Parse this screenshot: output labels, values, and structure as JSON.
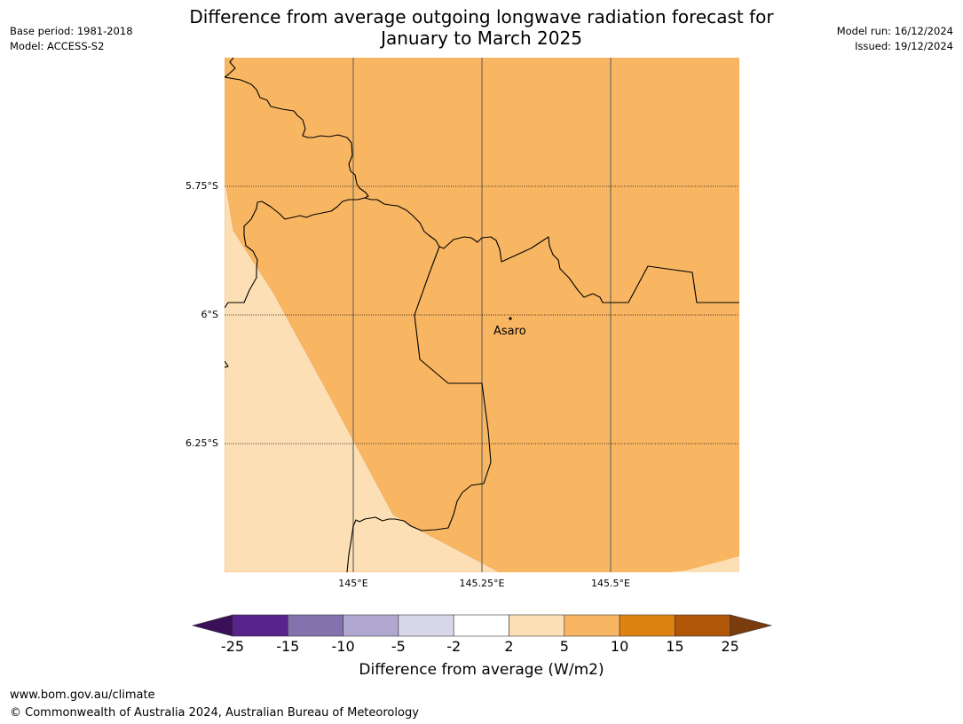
{
  "header": {
    "title_line1": "Difference from average outgoing longwave radiation forecast for",
    "title_line2": "January to March 2025",
    "base_period": "Base period: 1981-2018",
    "model": "Model: ACCESS-S2",
    "model_run": "Model run: 16/12/2024",
    "issued": "Issued: 19/12/2024"
  },
  "map": {
    "latitude_labels": [
      "5.75°S",
      "6°S",
      "6.25°S"
    ],
    "longitude_labels": [
      "145°E",
      "145.25°E",
      "145.5°E"
    ],
    "place": {
      "name": "Asaro"
    },
    "fill_colors": {
      "class_5_10": "#f9b662",
      "class_2_5": "#fcdfb5"
    }
  },
  "colorbar": {
    "title": "Difference from average (W/m2)",
    "tick_labels": [
      "-25",
      "-15",
      "-10",
      "-5",
      "-2",
      "2",
      "5",
      "10",
      "15",
      "25"
    ],
    "colors": [
      "#3b0f5a",
      "#58238a",
      "#8472af",
      "#b1a8d1",
      "#d9d8ea",
      "#ffffff",
      "#fcdfb5",
      "#f9b662",
      "#df8214",
      "#b05808",
      "#7a3c0c"
    ]
  },
  "footer": {
    "url": "www.bom.gov.au/climate",
    "copyright": "© Commonwealth of Australia 2024, Australian Bureau of Meteorology"
  }
}
